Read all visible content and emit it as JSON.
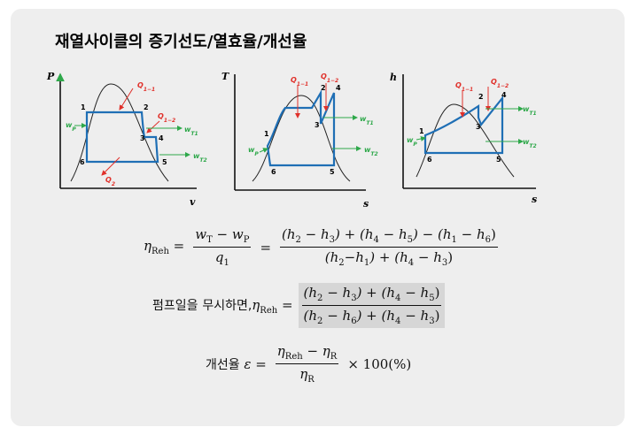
{
  "title": "재열사이클의 증기선도/열효율/개선율",
  "diagrams": [
    {
      "y_label": "P",
      "x_label": "v",
      "points": [
        "1",
        "2",
        "3",
        "4",
        "5",
        "6"
      ],
      "heat": [
        "Q_{1−1}",
        "Q_{1−2}",
        "Q_{2}"
      ],
      "work": [
        "w_{P}",
        "w_{T1}",
        "w_{T2}"
      ]
    },
    {
      "y_label": "T",
      "x_label": "s",
      "points": [
        "1",
        "2",
        "3",
        "4",
        "5",
        "6"
      ],
      "heat": [
        "Q_{1−1}",
        "Q_{1−2}"
      ],
      "work": [
        "w_{P}",
        "w_{T1}",
        "w_{T2}"
      ]
    },
    {
      "y_label": "h",
      "x_label": "s",
      "points": [
        "1",
        "2",
        "3",
        "4",
        "5",
        "6"
      ],
      "heat": [
        "Q_{1−1}",
        "Q_{1−2}"
      ],
      "work": [
        "w_{P}",
        "w_{T1}",
        "w_{T2}"
      ]
    }
  ],
  "formulas": [
    [
      {
        "text": "η_{Reh} ="
      },
      {
        "num": "w_{T} − w_{P}",
        "den": "q_{1}"
      },
      {
        "text": "="
      },
      {
        "num": "(h_{2} − h_{3}) + (h_{4} − h_{5}) − (h_{1} − h_{6})",
        "den": "(h_{2}−h_{1}) + (h_{4} − h_{3})"
      }
    ],
    [
      {
        "text": "펌프일을 무시하면,η_{Reh} ="
      },
      {
        "num": "(h_{2} − h_{3}) + (h_{4} − h_{5})",
        "den": "(h_{2} − h_{6}) + (h_{4} − h_{3})"
      }
    ],
    [
      {
        "text": "개선율 ε ="
      },
      {
        "num": "η_{Reh} − η_{R}",
        "den": "η_{R}"
      },
      {
        "text": "× 100(%)"
      }
    ]
  ]
}
